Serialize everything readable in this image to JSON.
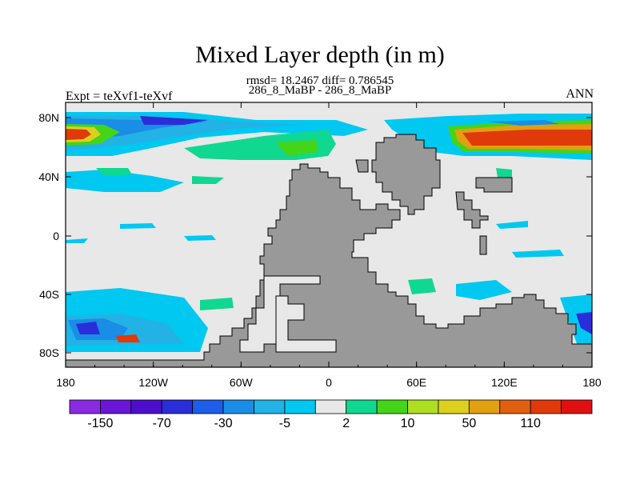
{
  "chart_data": {
    "type": "heatmap",
    "title": "Mixed Layer depth (in m)",
    "subtitle_stats": "rmsd= 18.2467 diff= 0.786545",
    "subtitle_case": "286_8_MaBP - 286_8_MaBP",
    "left_label": "Expt = teXvf1-teXvf",
    "right_label": "ANN",
    "x_ticks": [
      "180",
      "120W",
      "60W",
      "0",
      "60E",
      "120E",
      "180"
    ],
    "y_ticks": [
      "80N",
      "40N",
      "0",
      "40S",
      "80S"
    ],
    "colorbar_labels": [
      "-150",
      "-70",
      "-30",
      "-5",
      "2",
      "10",
      "50",
      "110"
    ],
    "colorbar_colors": [
      "#8a2be2",
      "#6a16d8",
      "#4b0fcc",
      "#2a2ed8",
      "#1e5de8",
      "#1a8de6",
      "#22b2e6",
      "#00c8f0",
      "#e8e8e8",
      "#10d890",
      "#44d418",
      "#aede22",
      "#dcd01e",
      "#e0a010",
      "#e06010",
      "#e03a0a",
      "#e01010"
    ],
    "land_color": "#999999",
    "ocean_color": "#e8e8e8"
  }
}
